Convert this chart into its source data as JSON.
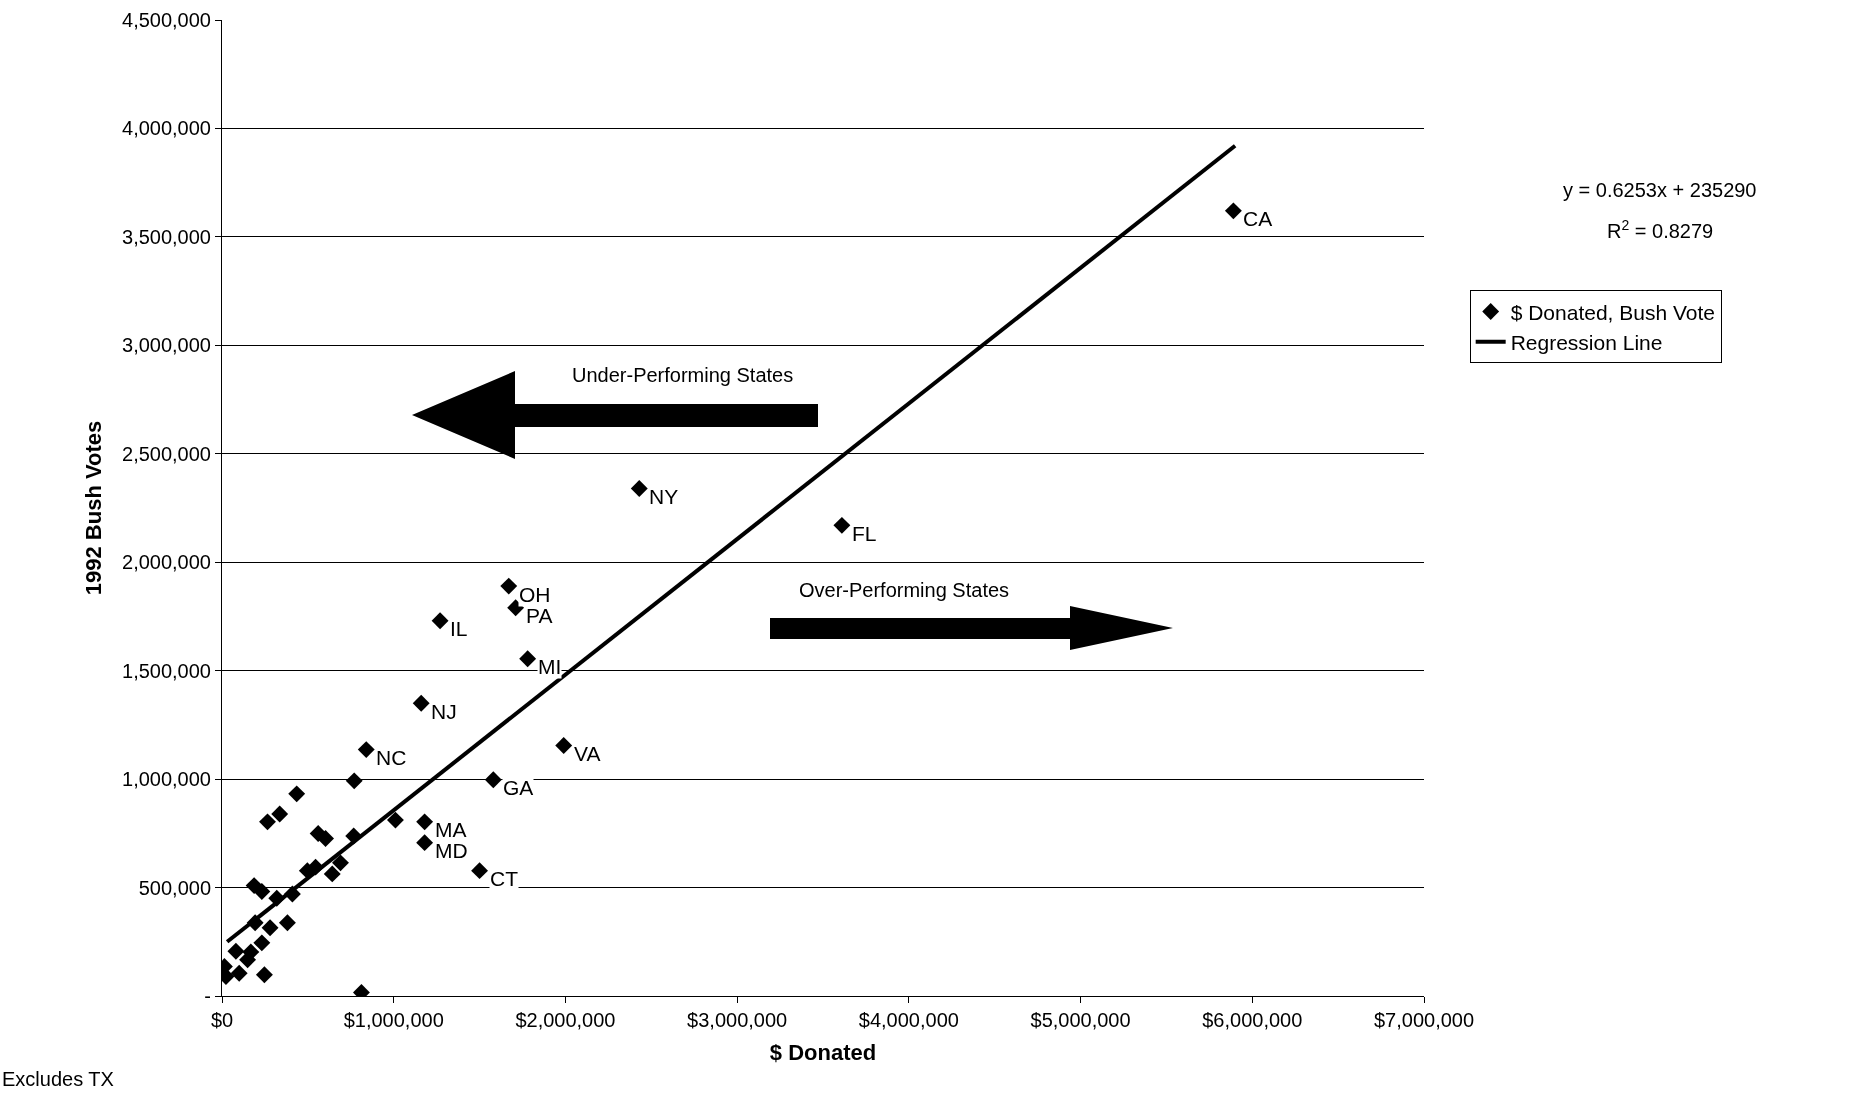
{
  "chart_data": {
    "type": "scatter",
    "xlabel": "$ Donated",
    "ylabel": "1992 Bush Votes",
    "xlim": [
      0,
      7000000
    ],
    "xticks": [
      {
        "value": 0,
        "label": "$0"
      },
      {
        "value": 1000000,
        "label": "$1,000,000"
      },
      {
        "value": 2000000,
        "label": "$2,000,000"
      },
      {
        "value": 3000000,
        "label": "$3,000,000"
      },
      {
        "value": 4000000,
        "label": "$4,000,000"
      },
      {
        "value": 5000000,
        "label": "$5,000,000"
      },
      {
        "value": 6000000,
        "label": "$6,000,000"
      },
      {
        "value": 7000000,
        "label": "$7,000,000"
      }
    ],
    "ylim": [
      0,
      4500000
    ],
    "yticks": [
      {
        "value": 0,
        "label": "-"
      },
      {
        "value": 500000,
        "label": "500,000"
      },
      {
        "value": 1000000,
        "label": "1,000,000"
      },
      {
        "value": 1500000,
        "label": "1,500,000"
      },
      {
        "value": 2000000,
        "label": "2,000,000"
      },
      {
        "value": 2500000,
        "label": "2,500,000"
      },
      {
        "value": 3000000,
        "label": "3,000,000"
      },
      {
        "value": 3500000,
        "label": "3,500,000"
      },
      {
        "value": 4000000,
        "label": "4,000,000"
      },
      {
        "value": 4500000,
        "label": "4,500,000"
      }
    ],
    "grid": "y",
    "legend": "right",
    "marker": "diamond",
    "series": [
      {
        "name": "$ Donated, Bush Vote",
        "color": "#000000",
        "x": [
          5890000,
          2430000,
          3610000,
          1670000,
          1710000,
          1270000,
          1780000,
          1160000,
          840000,
          1990000,
          1580000,
          1180000,
          1180000,
          1500000,
          770000,
          435000,
          265000,
          336000,
          1010000,
          560000,
          603000,
          767000,
          690000,
          642000,
          497000,
          545000,
          187000,
          232000,
          319000,
          410000,
          193000,
          280000,
          381000,
          232000,
          168000,
          81000,
          247000,
          812000,
          14000,
          23000,
          100000,
          149000
        ],
        "values": [
          3620000,
          2340000,
          2170000,
          1890000,
          1790000,
          1730000,
          1555000,
          1350000,
          1136000,
          1155000,
          997000,
          803000,
          707000,
          578000,
          992000,
          932000,
          803000,
          839000,
          811000,
          749000,
          726000,
          738000,
          614000,
          563000,
          578000,
          594000,
          509000,
          482000,
          451000,
          470000,
          338000,
          315000,
          338000,
          245000,
          203000,
          206000,
          98000,
          16000,
          136000,
          90000,
          105000,
          167000
        ]
      },
      {
        "name": "Regression Line",
        "color": "#000000",
        "type": "line",
        "line_style": "solid",
        "marker": "none",
        "x": [
          30000,
          5900000
        ],
        "values": [
          250000,
          3920000
        ]
      }
    ],
    "annotations": [
      {
        "text": "CA",
        "x": 5890000,
        "y": 3620000
      },
      {
        "text": "NY",
        "x": 2430000,
        "y": 2340000
      },
      {
        "text": "FL",
        "x": 3610000,
        "y": 2170000
      },
      {
        "text": "OH",
        "x": 1670000,
        "y": 1890000
      },
      {
        "text": "PA",
        "x": 1710000,
        "y": 1790000
      },
      {
        "text": "IL",
        "x": 1270000,
        "y": 1730000
      },
      {
        "text": "MI",
        "x": 1780000,
        "y": 1555000
      },
      {
        "text": "NJ",
        "x": 1160000,
        "y": 1350000
      },
      {
        "text": "NC",
        "x": 840000,
        "y": 1136000
      },
      {
        "text": "VA",
        "x": 1990000,
        "y": 1155000
      },
      {
        "text": "GA",
        "x": 1580000,
        "y": 997000
      },
      {
        "text": "MA",
        "x": 1180000,
        "y": 803000
      },
      {
        "text": "MD",
        "x": 1180000,
        "y": 707000
      },
      {
        "text": "CT",
        "x": 1500000,
        "y": 578000
      },
      "y = 0.6253x + 235290",
      "R$^{2}$ = 0.8279",
      "Under-Performing States",
      "Over-Performing States",
      "Excludes TX"
    ]
  }
}
